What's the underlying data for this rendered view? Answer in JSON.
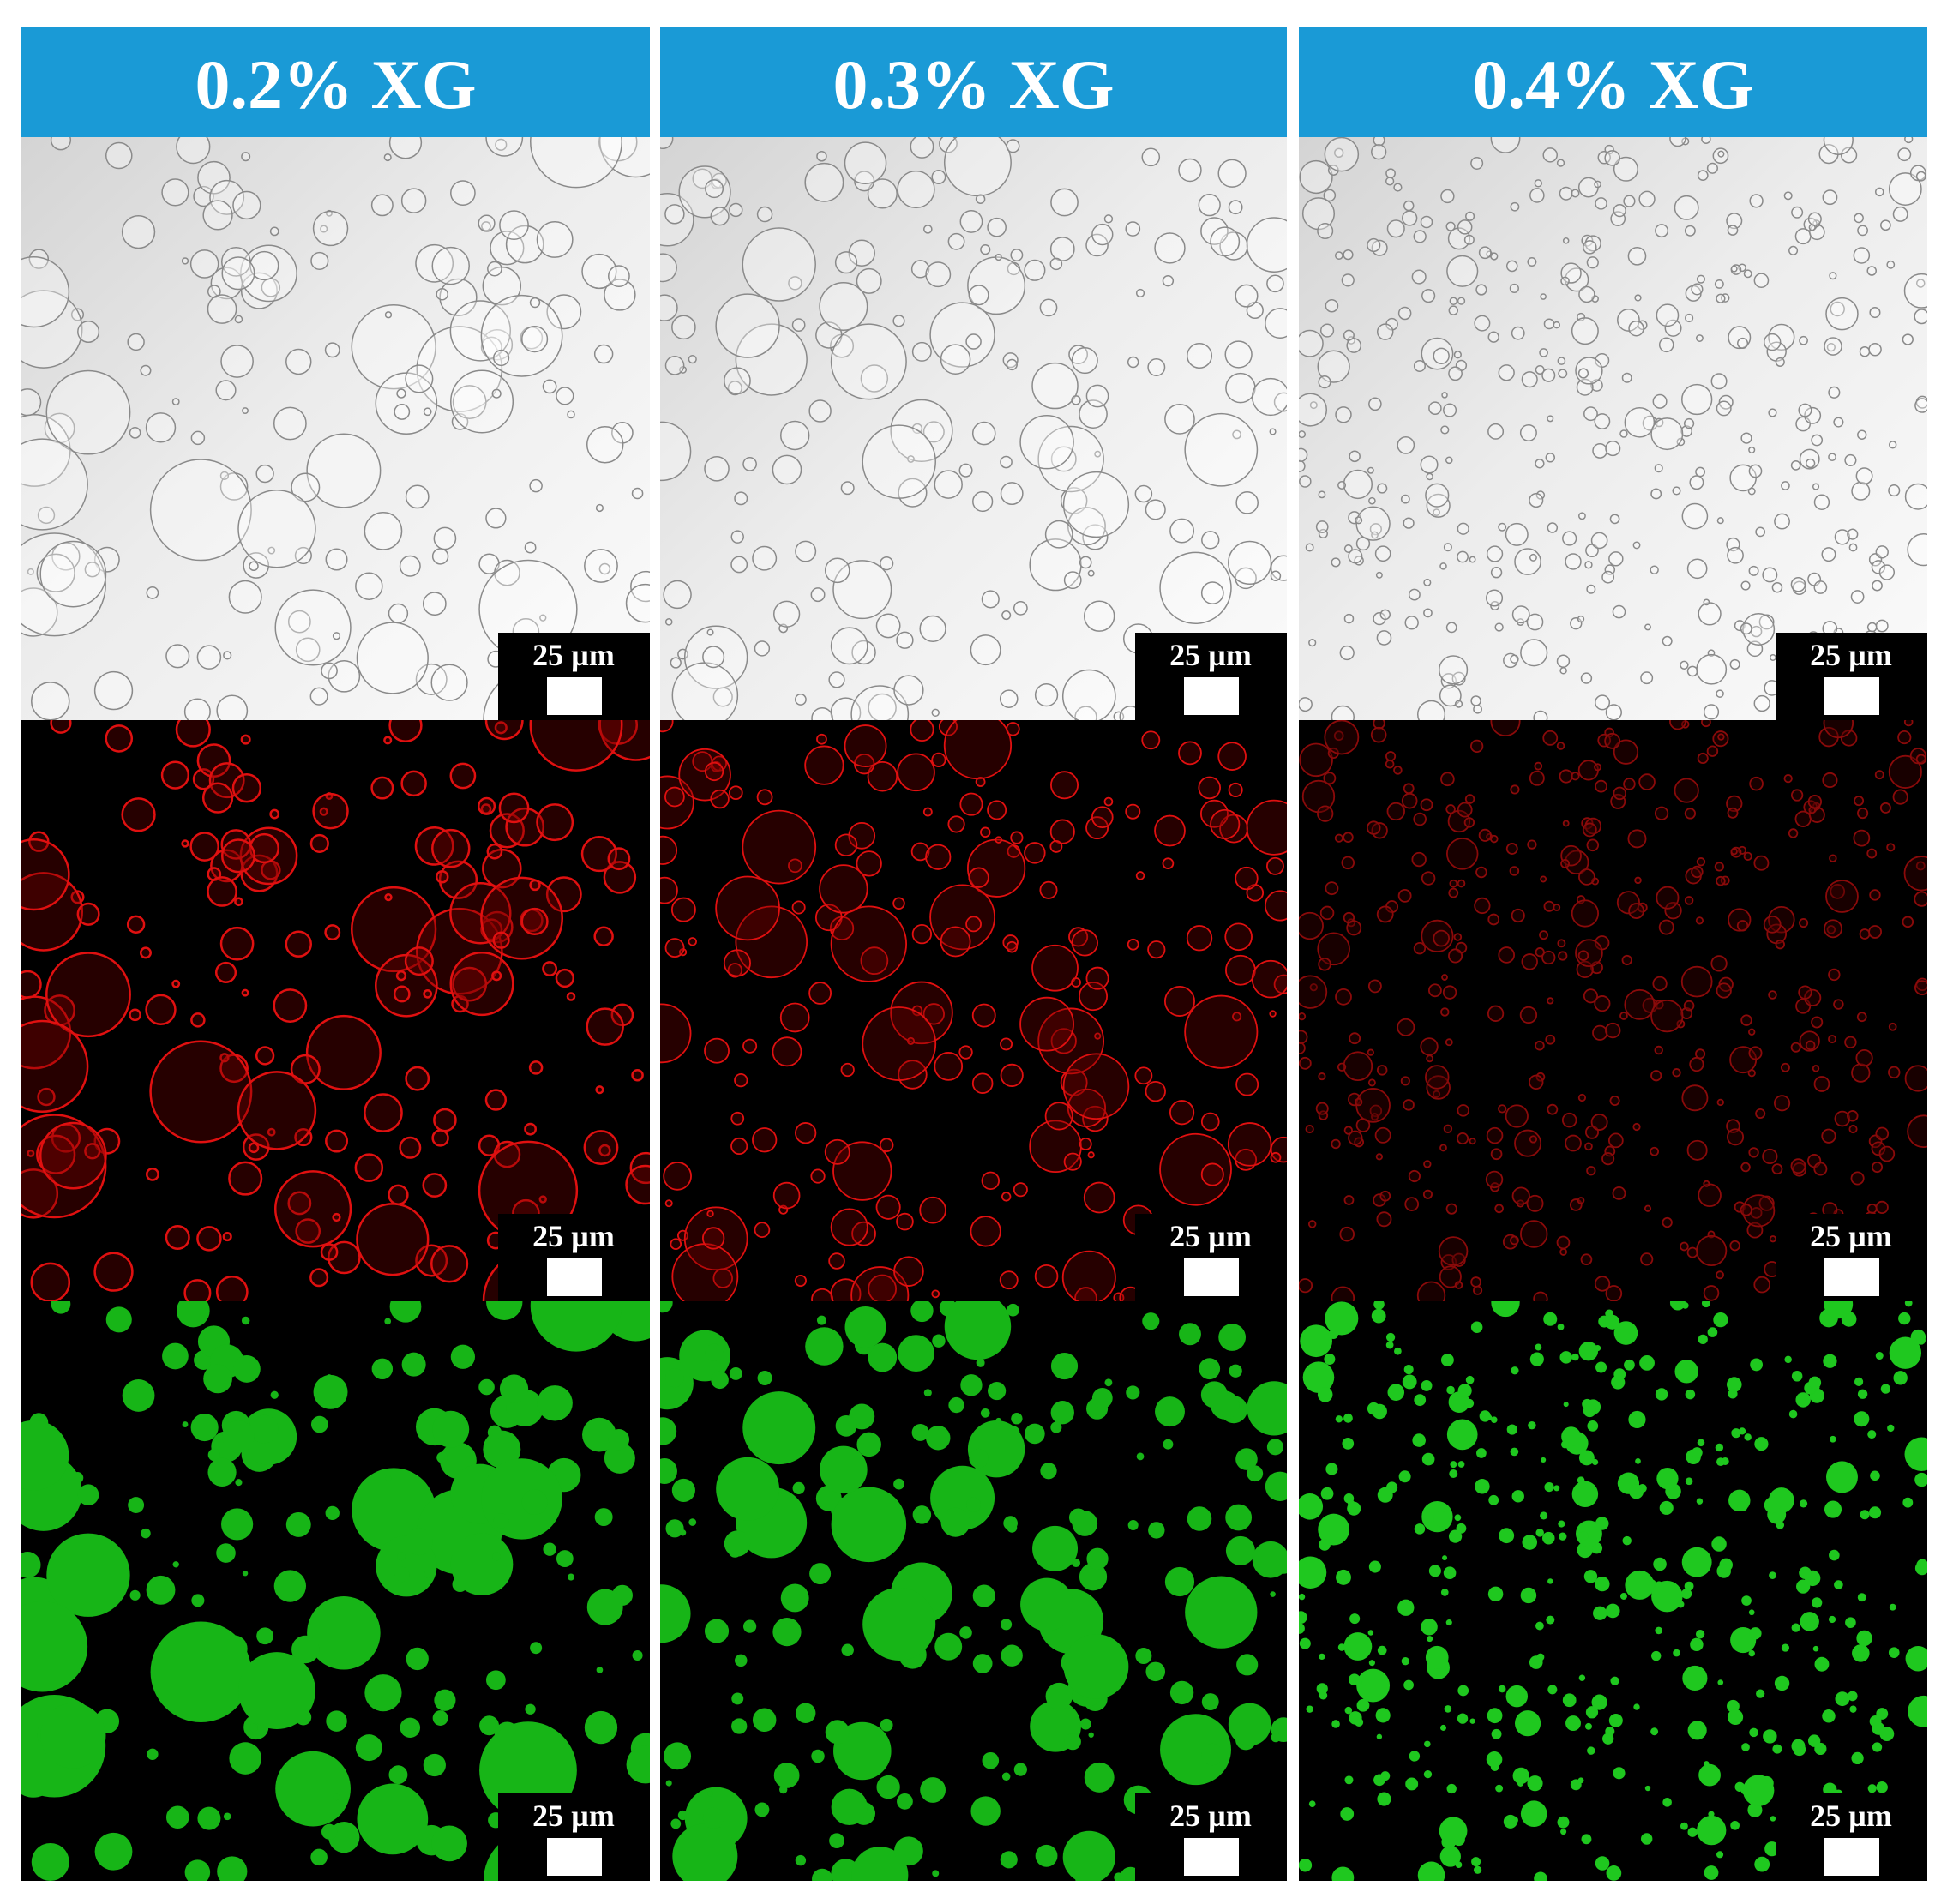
{
  "columns": [
    {
      "header": "0.2% XG",
      "scale_labels": [
        "25 µm",
        "25 µm",
        "25 µm"
      ]
    },
    {
      "header": "0.3% XG",
      "scale_labels": [
        "25 µm",
        "25 µm",
        "25 µm"
      ]
    },
    {
      "header": "0.4% XG",
      "scale_labels": [
        "25 µm",
        "25 µm",
        "25 µm"
      ]
    }
  ]
}
